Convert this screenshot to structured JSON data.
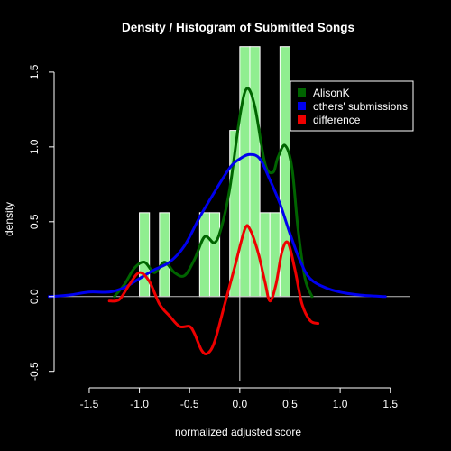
{
  "chart_data": {
    "type": "histogram",
    "title": "Density / Histogram of Submitted Songs",
    "xlabel": "normalized adjusted score",
    "ylabel": "density",
    "xlim": [
      -1.85,
      1.7
    ],
    "ylim": [
      -0.55,
      1.62
    ],
    "x_ticks": [
      "-1.5",
      "-1.0",
      "-0.5",
      "0.0",
      "0.5",
      "1.0",
      "1.5"
    ],
    "x_tick_values": [
      -1.5,
      -1.0,
      -0.5,
      0.0,
      0.5,
      1.0,
      1.5
    ],
    "y_ticks": [
      "-0.5",
      "0.0",
      "0.5",
      "1.0",
      "1.5"
    ],
    "y_tick_values": [
      -0.5,
      0.0,
      0.5,
      1.0,
      1.5
    ],
    "histogram": {
      "bin_width": 0.1,
      "bins": [
        {
          "x0": -1.0,
          "x1": -0.9,
          "density": 0.56
        },
        {
          "x0": -0.8,
          "x1": -0.7,
          "density": 0.56
        },
        {
          "x0": -0.4,
          "x1": -0.3,
          "density": 0.56
        },
        {
          "x0": -0.3,
          "x1": -0.2,
          "density": 0.56
        },
        {
          "x0": -0.1,
          "x1": 0.0,
          "density": 1.11
        },
        {
          "x0": 0.0,
          "x1": 0.1,
          "density": 1.67
        },
        {
          "x0": 0.1,
          "x1": 0.2,
          "density": 1.67
        },
        {
          "x0": 0.2,
          "x1": 0.3,
          "density": 0.56
        },
        {
          "x0": 0.3,
          "x1": 0.4,
          "density": 0.56
        },
        {
          "x0": 0.4,
          "x1": 0.5,
          "density": 1.67
        }
      ],
      "color": "#90ee90"
    },
    "series": [
      {
        "name": "AlisonK",
        "color": "#006400",
        "points": [
          [
            -1.25,
            0.0
          ],
          [
            -1.15,
            0.08
          ],
          [
            -1.05,
            0.19
          ],
          [
            -0.95,
            0.23
          ],
          [
            -0.85,
            0.16
          ],
          [
            -0.75,
            0.23
          ],
          [
            -0.65,
            0.16
          ],
          [
            -0.55,
            0.14
          ],
          [
            -0.45,
            0.25
          ],
          [
            -0.35,
            0.4
          ],
          [
            -0.25,
            0.36
          ],
          [
            -0.18,
            0.47
          ],
          [
            -0.1,
            0.72
          ],
          [
            0.0,
            1.2
          ],
          [
            0.07,
            1.39
          ],
          [
            0.15,
            1.27
          ],
          [
            0.25,
            0.89
          ],
          [
            0.33,
            0.83
          ],
          [
            0.38,
            0.93
          ],
          [
            0.45,
            1.01
          ],
          [
            0.52,
            0.86
          ],
          [
            0.58,
            0.45
          ],
          [
            0.65,
            0.12
          ],
          [
            0.72,
            0.0
          ]
        ]
      },
      {
        "name": "others' submissions",
        "color": "#0000ee",
        "points": [
          [
            -1.9,
            0.0
          ],
          [
            -1.7,
            0.01
          ],
          [
            -1.5,
            0.03
          ],
          [
            -1.3,
            0.03
          ],
          [
            -1.15,
            0.06
          ],
          [
            -1.0,
            0.12
          ],
          [
            -0.85,
            0.18
          ],
          [
            -0.7,
            0.23
          ],
          [
            -0.55,
            0.34
          ],
          [
            -0.4,
            0.53
          ],
          [
            -0.25,
            0.7
          ],
          [
            -0.1,
            0.86
          ],
          [
            0.0,
            0.92
          ],
          [
            0.1,
            0.95
          ],
          [
            0.2,
            0.92
          ],
          [
            0.3,
            0.78
          ],
          [
            0.4,
            0.62
          ],
          [
            0.5,
            0.42
          ],
          [
            0.6,
            0.24
          ],
          [
            0.7,
            0.12
          ],
          [
            0.85,
            0.06
          ],
          [
            1.0,
            0.03
          ],
          [
            1.2,
            0.01
          ],
          [
            1.45,
            0.0
          ]
        ]
      },
      {
        "name": "difference",
        "color": "#ee0000",
        "points": [
          [
            -1.3,
            -0.03
          ],
          [
            -1.2,
            -0.02
          ],
          [
            -1.1,
            0.08
          ],
          [
            -1.0,
            0.16
          ],
          [
            -0.9,
            0.1
          ],
          [
            -0.8,
            -0.05
          ],
          [
            -0.7,
            -0.13
          ],
          [
            -0.6,
            -0.2
          ],
          [
            -0.5,
            -0.2
          ],
          [
            -0.45,
            -0.25
          ],
          [
            -0.38,
            -0.36
          ],
          [
            -0.32,
            -0.38
          ],
          [
            -0.25,
            -0.3
          ],
          [
            -0.15,
            -0.05
          ],
          [
            -0.05,
            0.2
          ],
          [
            0.05,
            0.45
          ],
          [
            0.1,
            0.45
          ],
          [
            0.18,
            0.3
          ],
          [
            0.25,
            0.1
          ],
          [
            0.3,
            -0.03
          ],
          [
            0.36,
            0.08
          ],
          [
            0.42,
            0.3
          ],
          [
            0.48,
            0.36
          ],
          [
            0.55,
            0.18
          ],
          [
            0.62,
            -0.05
          ],
          [
            0.7,
            -0.16
          ],
          [
            0.78,
            -0.18
          ]
        ]
      }
    ],
    "legend": {
      "position": "top-right",
      "entries": [
        "AlisonK",
        "others' submissions",
        "difference"
      ]
    },
    "grid": false
  }
}
